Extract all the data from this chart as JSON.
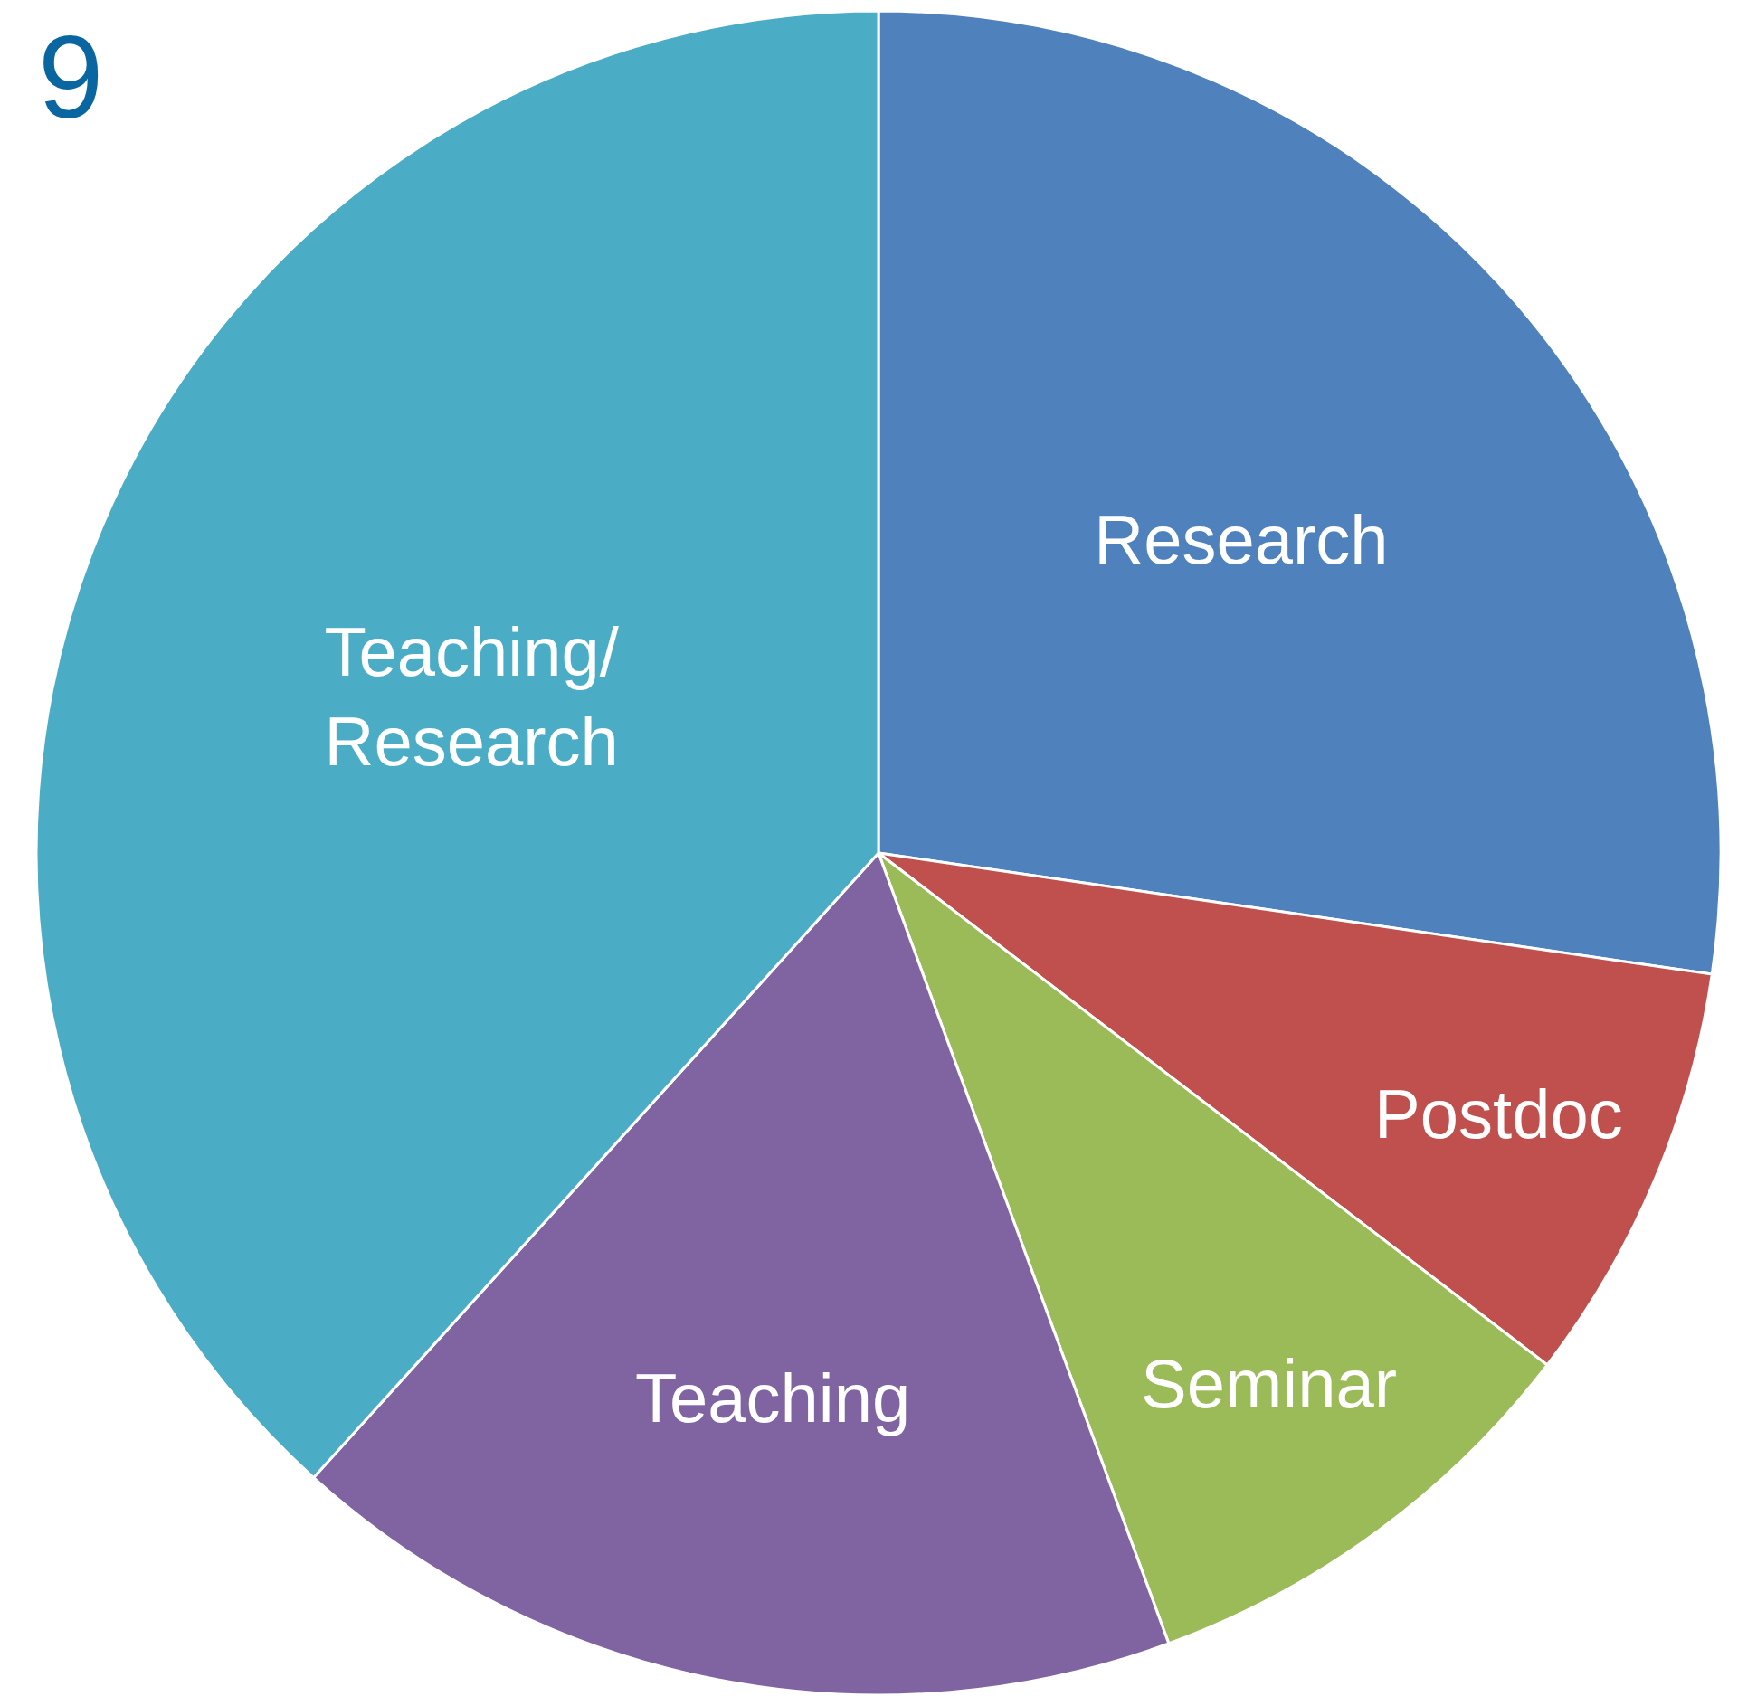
{
  "chart_data": {
    "type": "pie",
    "categories": [
      "Research",
      "Postdoc",
      "Seminar",
      "Teaching",
      "Teaching/\nResearch"
    ],
    "values": [
      27.3,
      8.1,
      9.0,
      17.3,
      38.3
    ],
    "colors": [
      "#4f81bd",
      "#c0504d",
      "#9bbb59",
      "#8064a2",
      "#4bacc6"
    ],
    "annotations": [
      "9"
    ]
  }
}
